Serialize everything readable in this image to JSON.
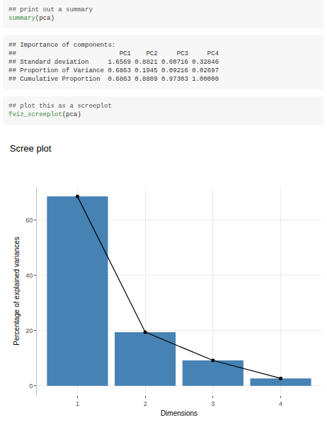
{
  "document": {
    "blocks": [
      {
        "kind": "code",
        "lines": [
          "## print out a summary",
          "summary(pca)"
        ]
      },
      {
        "kind": "output",
        "lines": [
          "## Importance of components:",
          "##                           PC1    PC2     PC3     PC4",
          "## Standard deviation     1.6569 0.8821 0.60716 0.32846",
          "## Proportion of Variance 0.6863 0.1945 0.09216 0.02697",
          "## Cumulative Proportion  0.6863 0.8809 0.97303 1.00000"
        ]
      },
      {
        "kind": "code",
        "lines": [
          "## plot this as a screeplot",
          "fviz_screeplot(pca)"
        ]
      }
    ]
  },
  "chart_data": {
    "type": "bar",
    "title": "Scree plot",
    "x_label": "Dimensions",
    "y_label": "Percentage of explained variances",
    "categories": [
      "1",
      "2",
      "3",
      "4"
    ],
    "series": [
      {
        "type": "bar",
        "color": "#4682b4",
        "values": [
          68.63,
          19.45,
          9.216,
          2.697
        ]
      },
      {
        "type": "line",
        "color": "#000000",
        "marker": "circle",
        "line_style": "solid",
        "values": [
          68.63,
          19.45,
          9.216,
          2.697
        ]
      }
    ],
    "ylim": [
      -3.43,
      72.06
    ],
    "yticks": [
      0,
      20,
      40,
      60
    ],
    "grid": true
  }
}
